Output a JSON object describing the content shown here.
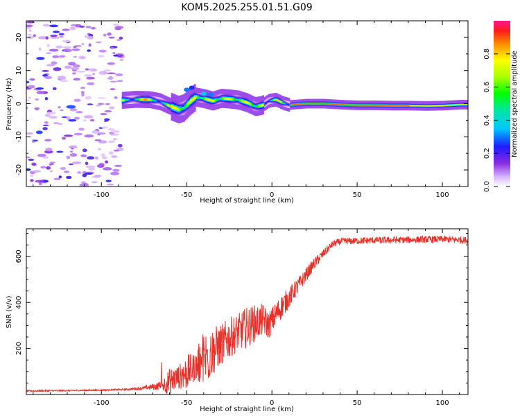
{
  "title": "KOM5.2025.255.01.51.G09",
  "chart_data": [
    {
      "type": "heatmap",
      "xlabel": "Height of straight line (km)",
      "ylabel": "Frequency (Hz)",
      "xlim": [
        -144,
        115
      ],
      "ylim": [
        -25,
        25
      ],
      "xticks": [
        -100,
        -50,
        0,
        50,
        100
      ],
      "yticks": [
        -20,
        -10,
        0,
        10,
        20
      ],
      "colorbar": {
        "label": "Normalized spectral amplitude",
        "range": [
          0,
          1
        ],
        "ticks": [
          "0.0",
          "0.2",
          "0.4",
          "0.6",
          "0.8"
        ]
      },
      "ridge": {
        "description": "peak frequency track (Hz) vs height (km)",
        "x": [
          -88,
          -80,
          -72,
          -66,
          -60,
          -55,
          -52,
          -48,
          -45,
          -40,
          -35,
          -30,
          -25,
          -20,
          -15,
          -10,
          -6,
          -2,
          2,
          6,
          10,
          20,
          30,
          40,
          50,
          60,
          70,
          80,
          90,
          100,
          110,
          115
        ],
        "y": [
          1.0,
          1.3,
          1.2,
          0.6,
          -0.8,
          -1.8,
          -1.3,
          0.8,
          2.0,
          1.5,
          0.8,
          1.6,
          1.4,
          1.1,
          0.3,
          -0.9,
          -0.5,
          0.9,
          1.2,
          0.2,
          -0.4,
          0.0,
          0.0,
          -0.3,
          -0.5,
          -0.5,
          -0.6,
          -0.6,
          -0.7,
          -0.6,
          -0.3,
          -0.3
        ]
      }
    },
    {
      "type": "line",
      "xlabel": "Height of straight line (km)",
      "ylabel": "SNR (v/v)",
      "xlim": [
        -144,
        115
      ],
      "ylim": [
        0,
        720
      ],
      "xticks": [
        -100,
        -50,
        0,
        50,
        100
      ],
      "yticks": [
        200,
        400,
        600
      ],
      "series": [
        {
          "name": "SNR",
          "color": "#e8302a",
          "x": [
            -144,
            -120,
            -100,
            -85,
            -75,
            -65,
            -60,
            -55,
            -50,
            -45,
            -40,
            -35,
            -30,
            -25,
            -20,
            -15,
            -10,
            -5,
            -2,
            5,
            10,
            15,
            20,
            25,
            30,
            35,
            40,
            60,
            80,
            100,
            115
          ],
          "y": [
            15,
            17,
            19,
            22,
            28,
            38,
            55,
            75,
            95,
            120,
            150,
            185,
            215,
            245,
            270,
            290,
            310,
            325,
            300,
            375,
            420,
            470,
            520,
            570,
            610,
            650,
            665,
            670,
            672,
            675,
            670
          ],
          "noise": [
            3,
            3,
            3,
            4,
            8,
            20,
            60,
            50,
            80,
            60,
            130,
            110,
            90,
            90,
            80,
            90,
            80,
            70,
            60,
            55,
            45,
            35,
            30,
            25,
            20,
            15,
            15,
            15,
            15,
            15,
            15
          ]
        }
      ]
    }
  ]
}
